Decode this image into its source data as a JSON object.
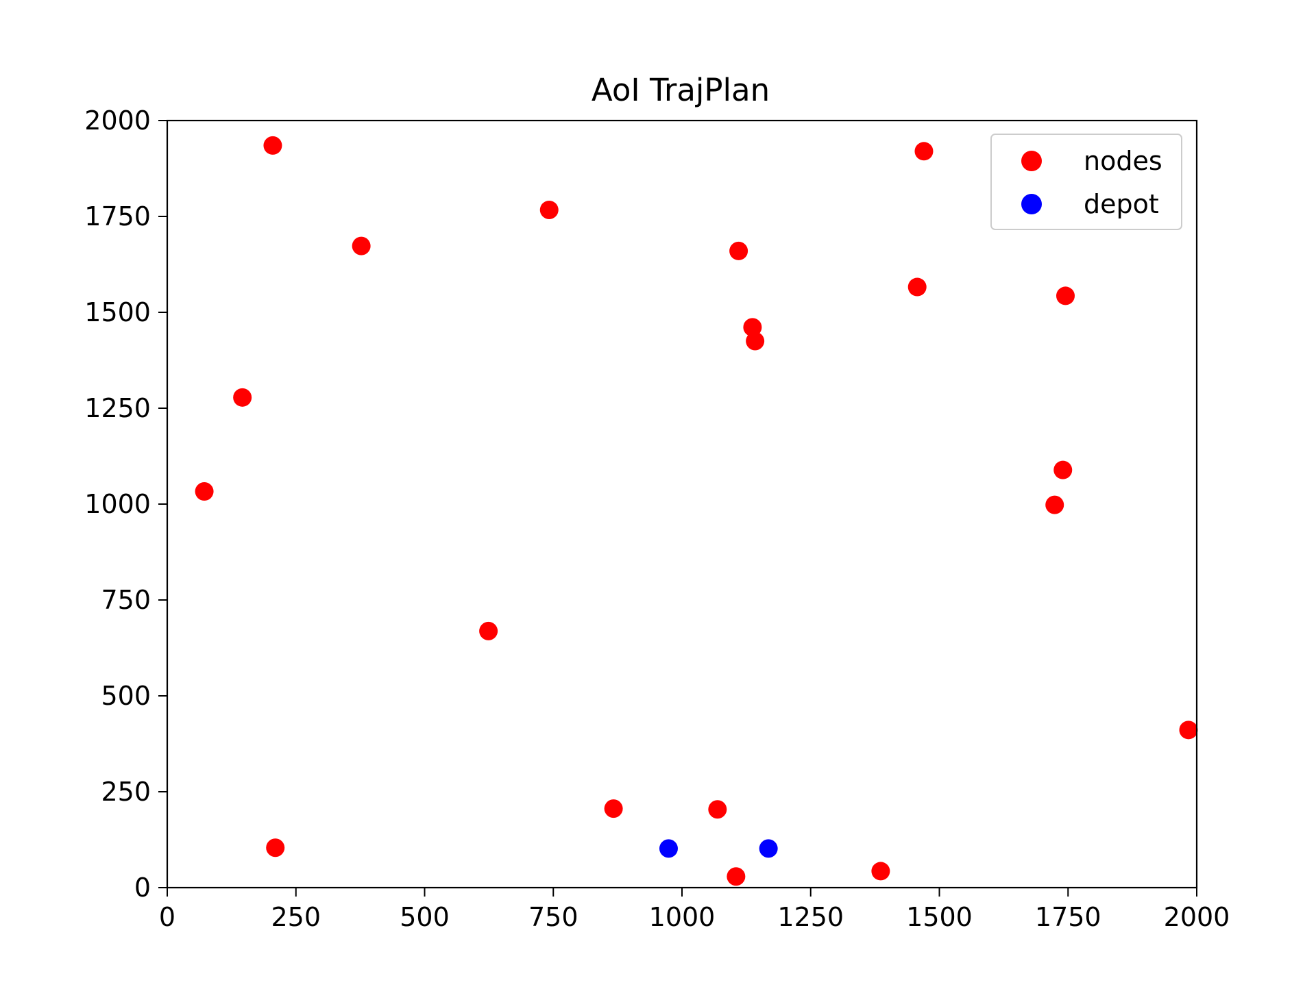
{
  "chart_data": {
    "type": "scatter",
    "title": "AoI TrajPlan",
    "xlabel": "",
    "ylabel": "",
    "xlim": [
      0,
      2000
    ],
    "ylim": [
      0,
      2000
    ],
    "x_ticks": [
      0,
      250,
      500,
      750,
      1000,
      1250,
      1500,
      1750,
      2000
    ],
    "y_ticks": [
      0,
      250,
      500,
      750,
      1000,
      1250,
      1500,
      1750,
      2000
    ],
    "grid": false,
    "legend_position": "top-right",
    "series": [
      {
        "name": "nodes",
        "color": "#ff0000",
        "points": [
          {
            "x": 205,
            "y": 1935
          },
          {
            "x": 1470,
            "y": 1920
          },
          {
            "x": 742,
            "y": 1767
          },
          {
            "x": 377,
            "y": 1673
          },
          {
            "x": 1110,
            "y": 1660
          },
          {
            "x": 1457,
            "y": 1566
          },
          {
            "x": 1745,
            "y": 1543
          },
          {
            "x": 1137,
            "y": 1461
          },
          {
            "x": 1142,
            "y": 1425
          },
          {
            "x": 146,
            "y": 1278
          },
          {
            "x": 1740,
            "y": 1089
          },
          {
            "x": 72,
            "y": 1033
          },
          {
            "x": 1724,
            "y": 998
          },
          {
            "x": 624,
            "y": 669
          },
          {
            "x": 1984,
            "y": 411
          },
          {
            "x": 867,
            "y": 206
          },
          {
            "x": 1069,
            "y": 204
          },
          {
            "x": 210,
            "y": 104
          },
          {
            "x": 1105,
            "y": 29
          },
          {
            "x": 1386,
            "y": 43
          }
        ]
      },
      {
        "name": "depot",
        "color": "#0000ff",
        "points": [
          {
            "x": 974,
            "y": 102
          },
          {
            "x": 1168,
            "y": 102
          }
        ]
      }
    ]
  }
}
